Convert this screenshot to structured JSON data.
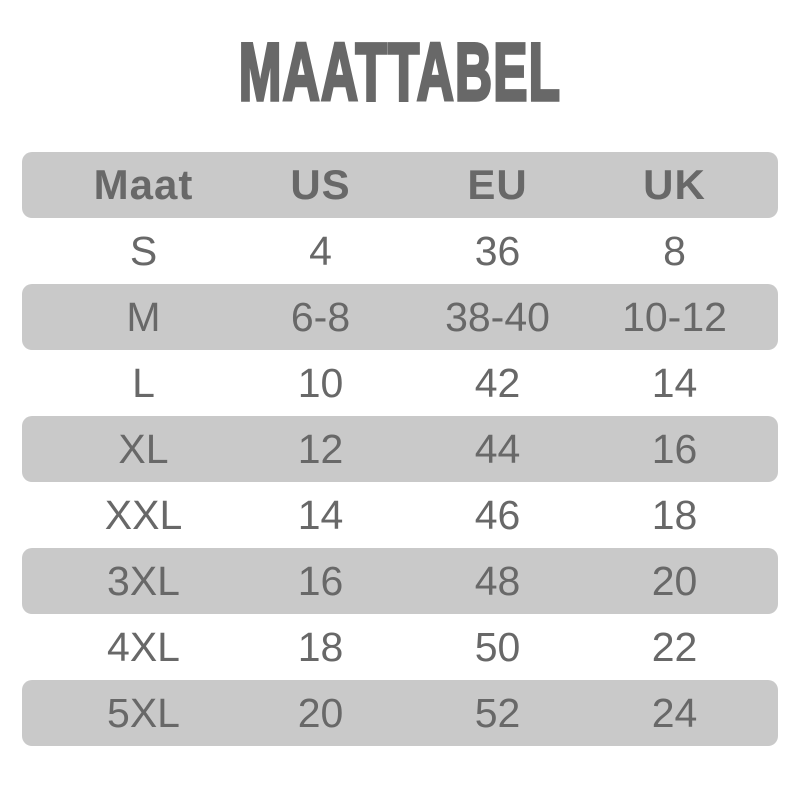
{
  "title": "MAATTABEL",
  "colors": {
    "row_shade": "#c9c9c9",
    "text": "#686868",
    "background": "#ffffff"
  },
  "chart_data": {
    "type": "table",
    "title": "MAATTABEL",
    "columns": [
      "Maat",
      "US",
      "EU",
      "UK"
    ],
    "rows": [
      [
        "S",
        "4",
        "36",
        "8"
      ],
      [
        "M",
        "6-8",
        "38-40",
        "10-12"
      ],
      [
        "L",
        "10",
        "42",
        "14"
      ],
      [
        "XL",
        "12",
        "44",
        "16"
      ],
      [
        "XXL",
        "14",
        "46",
        "18"
      ],
      [
        "3XL",
        "16",
        "48",
        "20"
      ],
      [
        "4XL",
        "18",
        "50",
        "22"
      ],
      [
        "5XL",
        "20",
        "52",
        "24"
      ]
    ],
    "layout": {
      "shaded_rows": [
        "header",
        "M",
        "XL",
        "3XL",
        "5XL"
      ],
      "grid": false,
      "borders": "none"
    }
  }
}
